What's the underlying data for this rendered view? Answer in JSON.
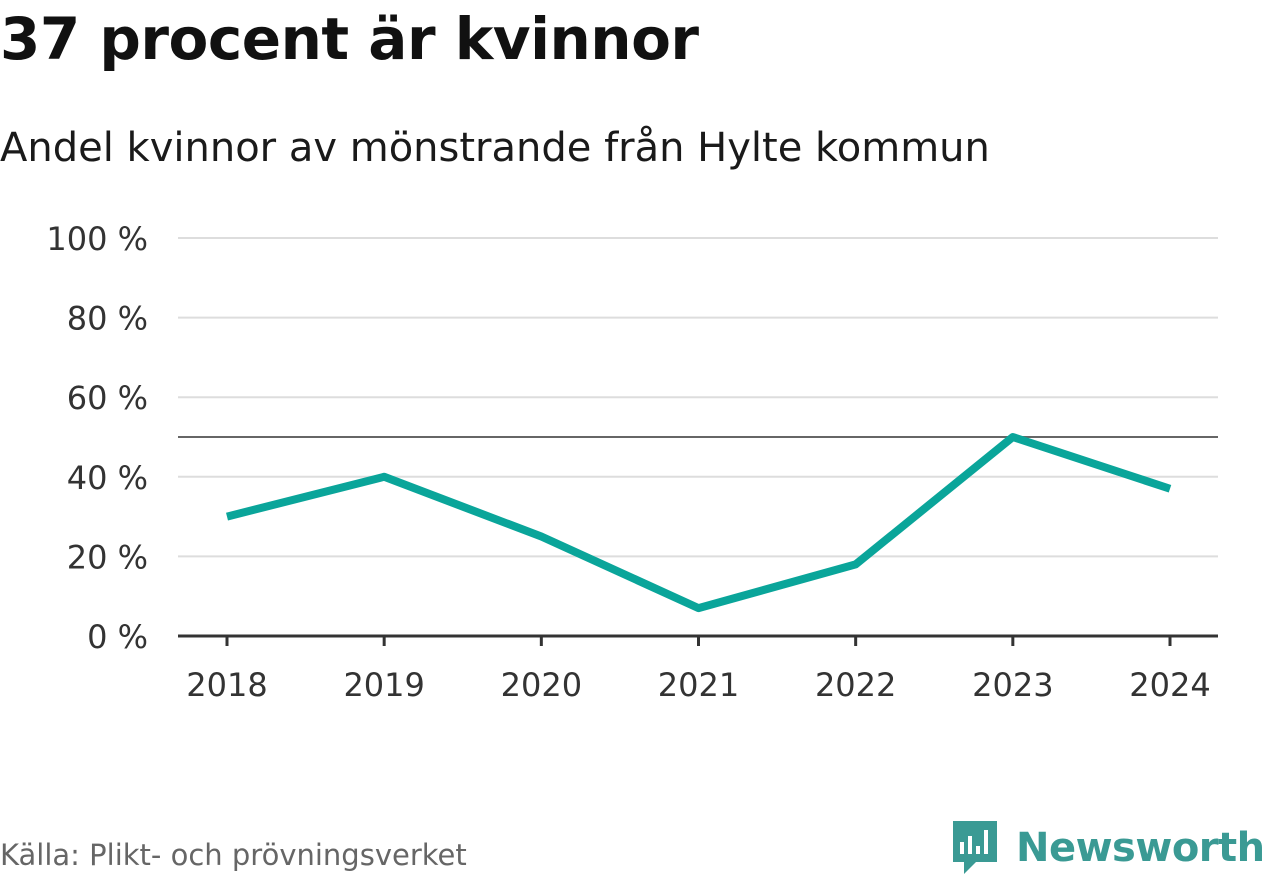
{
  "chart_data": {
    "type": "line",
    "title": "37 procent är kvinnor",
    "subtitle": "Andel kvinnor av mönstrande från Hylte kommun",
    "x": [
      "2018",
      "2019",
      "2020",
      "2021",
      "2022",
      "2023",
      "2024"
    ],
    "series": [
      {
        "name": "Andel kvinnor",
        "values": [
          30,
          40,
          25,
          7,
          18,
          50,
          37
        ]
      }
    ],
    "reference_line": 50,
    "ylim": [
      0,
      100
    ],
    "yticks": [
      0,
      20,
      40,
      60,
      80,
      100
    ],
    "ytick_labels": [
      "0 %",
      "20 %",
      "40 %",
      "60 %",
      "80 %",
      "100 %"
    ],
    "xlabel": "",
    "ylabel": "",
    "grid": true,
    "line_color": "#0aa59a",
    "reference_color": "#666666",
    "grid_color": "#dddddd",
    "source": "Källa: Plikt- och prövningsverket"
  },
  "brand": {
    "name": "Newsworthy",
    "color": "#3a9a94"
  }
}
